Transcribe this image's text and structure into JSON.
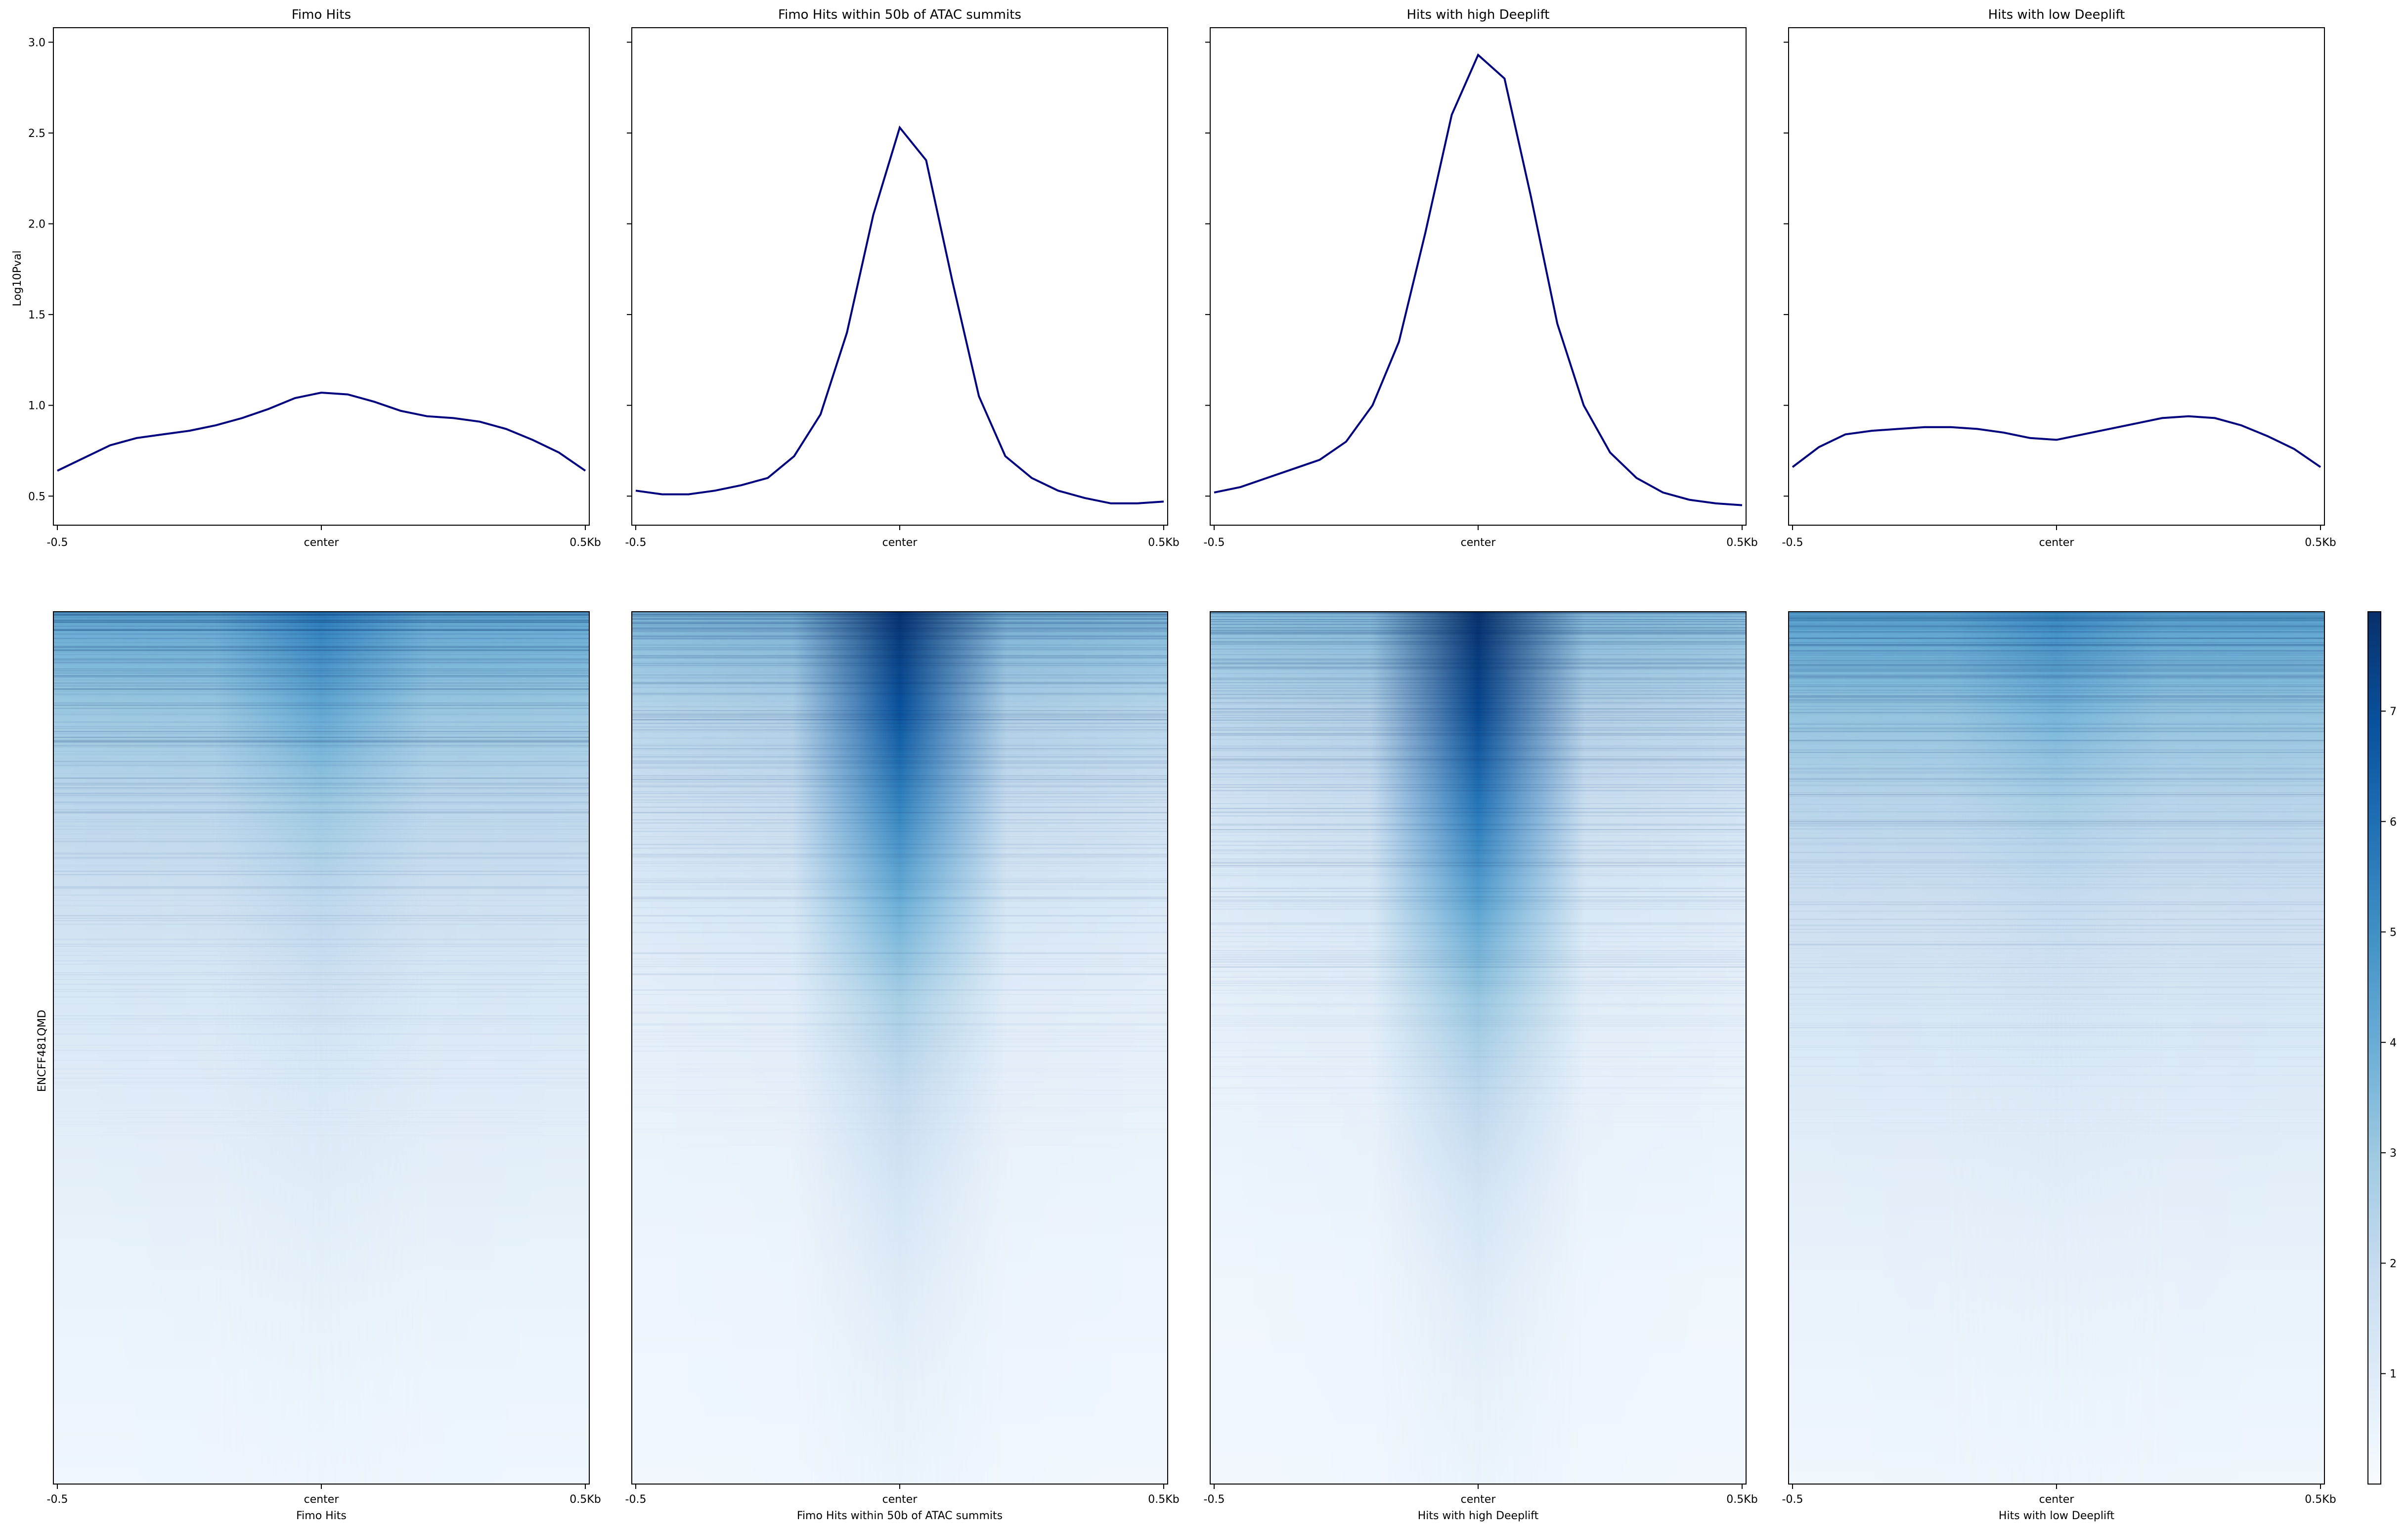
{
  "chart_data": [
    {
      "type": "line",
      "title": "Fimo Hits",
      "ylabel": "Log10Pval",
      "xticks": [
        "-0.5",
        "center",
        "0.5Kb"
      ],
      "yticks": [
        "0.5",
        "1.0",
        "1.5",
        "2.0",
        "2.5",
        "3.0"
      ],
      "ylim": [
        0.34,
        3.08
      ],
      "x": [
        -0.5,
        -0.45,
        -0.4,
        -0.35,
        -0.3,
        -0.25,
        -0.2,
        -0.15,
        -0.1,
        -0.05,
        0,
        0.05,
        0.1,
        0.15,
        0.2,
        0.25,
        0.3,
        0.35,
        0.4,
        0.45,
        0.5
      ],
      "series": [
        {
          "color": "#00007f",
          "values": [
            0.64,
            0.71,
            0.78,
            0.82,
            0.84,
            0.86,
            0.89,
            0.93,
            0.98,
            1.04,
            1.07,
            1.06,
            1.02,
            0.97,
            0.94,
            0.93,
            0.91,
            0.87,
            0.81,
            0.74,
            0.64
          ]
        }
      ]
    },
    {
      "type": "line",
      "title": "Fimo Hits within 50b of ATAC summits",
      "xticks": [
        "-0.5",
        "center",
        "0.5Kb"
      ],
      "ylim": [
        0.34,
        3.08
      ],
      "x": [
        -0.5,
        -0.45,
        -0.4,
        -0.35,
        -0.3,
        -0.25,
        -0.2,
        -0.15,
        -0.1,
        -0.05,
        0,
        0.05,
        0.1,
        0.15,
        0.2,
        0.25,
        0.3,
        0.35,
        0.4,
        0.45,
        0.5
      ],
      "series": [
        {
          "color": "#00007f",
          "values": [
            0.53,
            0.51,
            0.51,
            0.53,
            0.56,
            0.6,
            0.72,
            0.95,
            1.4,
            2.05,
            2.53,
            2.35,
            1.68,
            1.05,
            0.72,
            0.6,
            0.53,
            0.49,
            0.46,
            0.46,
            0.47
          ]
        }
      ]
    },
    {
      "type": "line",
      "title": "Hits with high Deeplift",
      "xticks": [
        "-0.5",
        "center",
        "0.5Kb"
      ],
      "ylim": [
        0.34,
        3.08
      ],
      "x": [
        -0.5,
        -0.45,
        -0.4,
        -0.35,
        -0.3,
        -0.25,
        -0.2,
        -0.15,
        -0.1,
        -0.05,
        0,
        0.05,
        0.1,
        0.15,
        0.2,
        0.25,
        0.3,
        0.35,
        0.4,
        0.45,
        0.5
      ],
      "series": [
        {
          "color": "#00007f",
          "values": [
            0.52,
            0.55,
            0.6,
            0.65,
            0.7,
            0.8,
            1.0,
            1.35,
            1.95,
            2.6,
            2.93,
            2.8,
            2.15,
            1.45,
            1.0,
            0.74,
            0.6,
            0.52,
            0.48,
            0.46,
            0.45
          ]
        }
      ]
    },
    {
      "type": "line",
      "title": "Hits with low Deeplift",
      "xticks": [
        "-0.5",
        "center",
        "0.5Kb"
      ],
      "ylim": [
        0.34,
        3.08
      ],
      "x": [
        -0.5,
        -0.45,
        -0.4,
        -0.35,
        -0.3,
        -0.25,
        -0.2,
        -0.15,
        -0.1,
        -0.05,
        0,
        0.05,
        0.1,
        0.15,
        0.2,
        0.25,
        0.3,
        0.35,
        0.4,
        0.45,
        0.5
      ],
      "series": [
        {
          "color": "#00007f",
          "values": [
            0.66,
            0.77,
            0.84,
            0.86,
            0.87,
            0.88,
            0.88,
            0.87,
            0.85,
            0.82,
            0.81,
            0.84,
            0.87,
            0.9,
            0.93,
            0.94,
            0.93,
            0.89,
            0.83,
            0.76,
            0.66
          ]
        }
      ]
    },
    {
      "type": "heatmap",
      "ylabel": "ENCFF481QMD",
      "colormap": "Blues",
      "colorbar_ticks": [
        "1",
        "2",
        "3",
        "4",
        "5",
        "6",
        "7"
      ],
      "zlim": [
        0,
        7.9
      ],
      "panels": [
        {
          "xlabel": "Fimo Hits",
          "xticks": [
            "-0.5",
            "center",
            "0.5Kb"
          ],
          "center_intensity": [
            5.6,
            4.2,
            3.0,
            2.2,
            1.6,
            1.2,
            0.9,
            0.7,
            0.5,
            0.4
          ],
          "background_intensity": [
            4.2,
            3.0,
            2.2,
            1.6,
            1.2,
            0.9,
            0.7,
            0.5,
            0.4,
            0.3
          ]
        },
        {
          "xlabel": "Fimo Hits within 50b of ATAC summits",
          "xticks": [
            "-0.5",
            "center",
            "0.5Kb"
          ],
          "center_intensity": [
            7.8,
            6.9,
            5.4,
            4.0,
            2.8,
            2.0,
            1.4,
            1.0,
            0.7,
            0.5
          ],
          "background_intensity": [
            3.6,
            2.4,
            1.6,
            1.1,
            0.8,
            0.6,
            0.45,
            0.35,
            0.3,
            0.25
          ]
        },
        {
          "xlabel": "Hits with high Deeplift",
          "xticks": [
            "-0.5",
            "center",
            "0.5Kb"
          ],
          "center_intensity": [
            7.9,
            7.2,
            5.8,
            4.4,
            3.1,
            2.2,
            1.5,
            1.0,
            0.7,
            0.5
          ],
          "background_intensity": [
            3.4,
            2.3,
            1.5,
            1.0,
            0.75,
            0.55,
            0.42,
            0.33,
            0.28,
            0.22
          ]
        },
        {
          "xlabel": "Hits with low Deeplift",
          "xticks": [
            "-0.5",
            "center",
            "0.5Kb"
          ],
          "center_intensity": [
            5.2,
            3.8,
            2.7,
            2.0,
            1.5,
            1.1,
            0.85,
            0.65,
            0.5,
            0.38
          ],
          "background_intensity": [
            4.4,
            3.2,
            2.3,
            1.7,
            1.3,
            1.0,
            0.75,
            0.55,
            0.42,
            0.32
          ]
        }
      ]
    }
  ]
}
